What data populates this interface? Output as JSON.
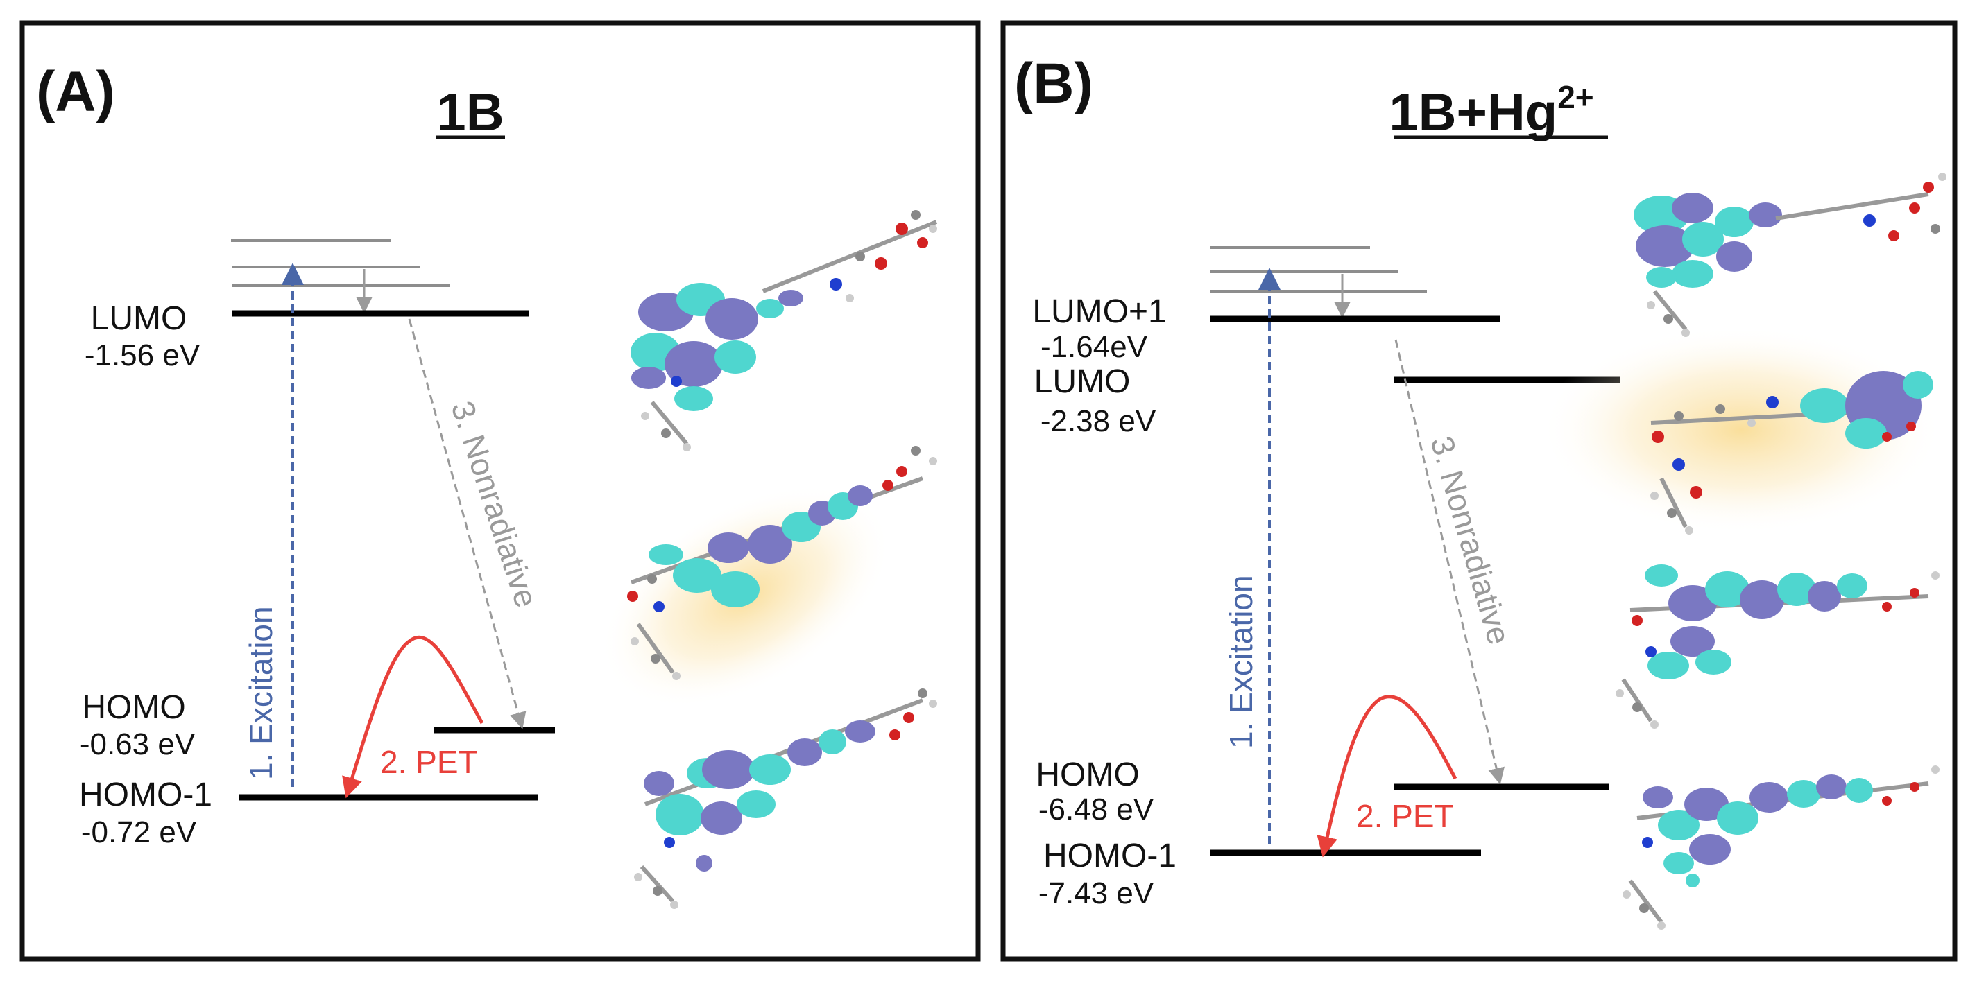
{
  "panels": [
    {
      "letter": "(A)",
      "title_main": "1B",
      "title_sup": "",
      "levels": [
        {
          "name": "LUMO",
          "energy": "-1.56 eV"
        },
        {
          "name": "HOMO",
          "energy": "-0.63 eV"
        },
        {
          "name": "HOMO-1",
          "energy": "-0.72 eV"
        }
      ],
      "arrows": {
        "excitation": "1. Excitation",
        "pet": "2. PET",
        "nonradiative": "3. Nonradiative"
      }
    },
    {
      "letter": "(B)",
      "title_main": "1B+Hg",
      "title_sup": "2+",
      "levels": [
        {
          "name": "LUMO+1",
          "energy": "-1.64eV"
        },
        {
          "name": "LUMO",
          "energy": "-2.38 eV"
        },
        {
          "name": "HOMO",
          "energy": "-6.48 eV"
        },
        {
          "name": "HOMO-1",
          "energy": "-7.43 eV"
        }
      ],
      "arrows": {
        "excitation": "1. Excitation",
        "pet": "2. PET",
        "nonradiative": "3. Nonradiative"
      }
    }
  ],
  "colors": {
    "excitation": "#4a67a8",
    "pet": "#e8403a",
    "nonradiative": "#9a9a9a",
    "orbital_lobe_a": "#7a78c2",
    "orbital_lobe_b": "#4fd6cf",
    "glow": "#f9d98a"
  }
}
